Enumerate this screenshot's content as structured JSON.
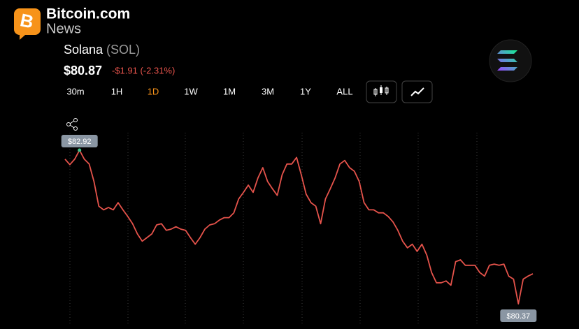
{
  "header": {
    "brand": "Bitcoin.com",
    "brand_sub": "News"
  },
  "asset": {
    "name": "Solana",
    "symbol": "(SOL)",
    "price": "$80.87",
    "change": "-$1.91 (-2.31%)"
  },
  "timeframes": [
    "30m",
    "1H",
    "1D",
    "1W",
    "1M",
    "3M",
    "1Y",
    "ALL"
  ],
  "active_timeframe": "1D",
  "chart_data": {
    "type": "line",
    "color": "#e5534b",
    "values": [
      82.77,
      82.68,
      82.77,
      82.92,
      82.77,
      82.69,
      82.4,
      81.99,
      81.93,
      81.97,
      81.93,
      82.05,
      81.93,
      81.82,
      81.7,
      81.53,
      81.41,
      81.47,
      81.53,
      81.68,
      81.7,
      81.59,
      81.61,
      81.65,
      81.61,
      81.59,
      81.47,
      81.36,
      81.47,
      81.61,
      81.68,
      81.7,
      81.76,
      81.8,
      81.8,
      81.88,
      82.11,
      82.22,
      82.34,
      82.22,
      82.46,
      82.63,
      82.4,
      82.28,
      82.17,
      82.51,
      82.69,
      82.69,
      82.8,
      82.51,
      82.19,
      82.05,
      81.99,
      81.7,
      82.11,
      82.28,
      82.46,
      82.69,
      82.75,
      82.63,
      82.57,
      82.4,
      82.05,
      81.93,
      81.93,
      81.88,
      81.88,
      81.82,
      81.73,
      81.59,
      81.41,
      81.3,
      81.36,
      81.24,
      81.36,
      81.18,
      80.89,
      80.72,
      80.72,
      80.75,
      80.68,
      81.07,
      81.1,
      81.01,
      81.01,
      81.01,
      80.89,
      80.83,
      81.01,
      81.03,
      81.01,
      81.03,
      80.83,
      80.78,
      80.37,
      80.78,
      80.83,
      80.87
    ],
    "max_label": "$82.92",
    "min_label": "$80.37"
  }
}
